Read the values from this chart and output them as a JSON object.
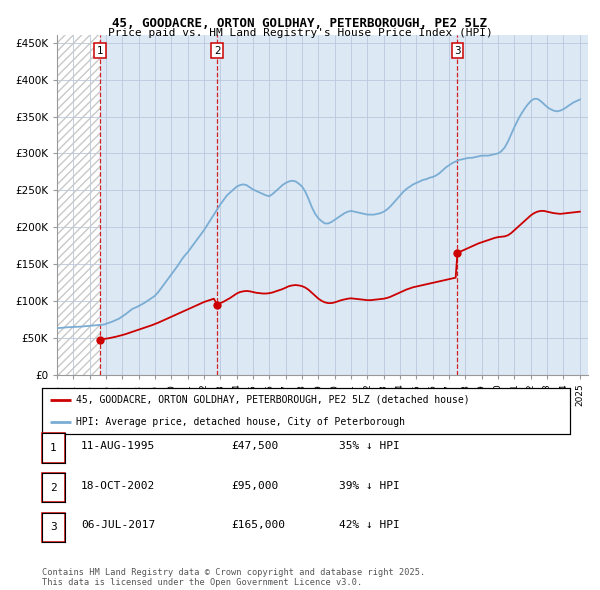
{
  "title1": "45, GOODACRE, ORTON GOLDHAY, PETERBOROUGH, PE2 5LZ",
  "title2": "Price paid vs. HM Land Registry's House Price Index (HPI)",
  "ylabel_ticks": [
    "£0",
    "£50K",
    "£100K",
    "£150K",
    "£200K",
    "£250K",
    "£300K",
    "£350K",
    "£400K",
    "£450K"
  ],
  "ytick_vals": [
    0,
    50000,
    100000,
    150000,
    200000,
    250000,
    300000,
    350000,
    400000,
    450000
  ],
  "ylim": [
    0,
    460000
  ],
  "xlim_start": 1993.0,
  "xlim_end": 2025.5,
  "hpi_color": "#7aadd4",
  "price_color": "#cc0000",
  "marker_color": "#cc0000",
  "sale_dates": [
    1995.61,
    2002.8,
    2017.51
  ],
  "sale_prices": [
    47500,
    95000,
    165000
  ],
  "sale_labels": [
    "1",
    "2",
    "3"
  ],
  "vline_color": "#cc0000",
  "background_hatch_color": "#c8c8c8",
  "chart_bg_color": "#dde8f5",
  "grid_color": "#b8c8dd",
  "legend_entry1": "45, GOODACRE, ORTON GOLDHAY, PETERBOROUGH, PE2 5LZ (detached house)",
  "legend_entry2": "HPI: Average price, detached house, City of Peterborough",
  "table_rows": [
    [
      "1",
      "11-AUG-1995",
      "£47,500",
      "35% ↓ HPI"
    ],
    [
      "2",
      "18-OCT-2002",
      "£95,000",
      "39% ↓ HPI"
    ],
    [
      "3",
      "06-JUL-2017",
      "£165,000",
      "42% ↓ HPI"
    ]
  ],
  "footnote": "Contains HM Land Registry data © Crown copyright and database right 2025.\nThis data is licensed under the Open Government Licence v3.0.",
  "hpi_x": [
    1993.0,
    1993.1,
    1993.2,
    1993.3,
    1993.4,
    1993.5,
    1993.6,
    1993.7,
    1993.8,
    1993.9,
    1994.0,
    1994.1,
    1994.2,
    1994.3,
    1994.4,
    1994.5,
    1994.6,
    1994.7,
    1994.8,
    1994.9,
    1995.0,
    1995.1,
    1995.2,
    1995.3,
    1995.4,
    1995.5,
    1995.6,
    1995.7,
    1995.8,
    1995.9,
    1996.0,
    1996.2,
    1996.4,
    1996.6,
    1996.8,
    1997.0,
    1997.2,
    1997.4,
    1997.6,
    1997.8,
    1998.0,
    1998.2,
    1998.4,
    1998.6,
    1998.8,
    1999.0,
    1999.2,
    1999.4,
    1999.6,
    1999.8,
    2000.0,
    2000.2,
    2000.4,
    2000.6,
    2000.8,
    2001.0,
    2001.2,
    2001.4,
    2001.6,
    2001.8,
    2002.0,
    2002.2,
    2002.4,
    2002.6,
    2002.8,
    2003.0,
    2003.2,
    2003.4,
    2003.6,
    2003.8,
    2004.0,
    2004.2,
    2004.4,
    2004.6,
    2004.8,
    2005.0,
    2005.2,
    2005.4,
    2005.6,
    2005.8,
    2006.0,
    2006.2,
    2006.4,
    2006.6,
    2006.8,
    2007.0,
    2007.2,
    2007.4,
    2007.6,
    2007.8,
    2008.0,
    2008.2,
    2008.4,
    2008.6,
    2008.8,
    2009.0,
    2009.2,
    2009.4,
    2009.6,
    2009.8,
    2010.0,
    2010.2,
    2010.4,
    2010.6,
    2010.8,
    2011.0,
    2011.2,
    2011.4,
    2011.6,
    2011.8,
    2012.0,
    2012.2,
    2012.4,
    2012.6,
    2012.8,
    2013.0,
    2013.2,
    2013.4,
    2013.6,
    2013.8,
    2014.0,
    2014.2,
    2014.4,
    2014.6,
    2014.8,
    2015.0,
    2015.2,
    2015.4,
    2015.6,
    2015.8,
    2016.0,
    2016.2,
    2016.4,
    2016.6,
    2016.8,
    2017.0,
    2017.2,
    2017.4,
    2017.6,
    2017.8,
    2018.0,
    2018.2,
    2018.4,
    2018.6,
    2018.8,
    2019.0,
    2019.2,
    2019.4,
    2019.6,
    2019.8,
    2020.0,
    2020.2,
    2020.4,
    2020.6,
    2020.8,
    2021.0,
    2021.2,
    2021.4,
    2021.6,
    2021.8,
    2022.0,
    2022.2,
    2022.4,
    2022.6,
    2022.8,
    2023.0,
    2023.2,
    2023.4,
    2023.6,
    2023.8,
    2024.0,
    2024.2,
    2024.4,
    2024.6,
    2024.8,
    2025.0
  ],
  "hpi_y": [
    63000,
    63200,
    63400,
    63600,
    63800,
    64000,
    64200,
    64300,
    64400,
    64500,
    64600,
    64700,
    64800,
    64900,
    65000,
    65200,
    65400,
    65600,
    65800,
    66000,
    66200,
    66400,
    66600,
    66800,
    67000,
    67200,
    67400,
    67600,
    67800,
    68000,
    69000,
    70500,
    72000,
    74000,
    76000,
    79000,
    82000,
    85500,
    89000,
    91000,
    93000,
    95500,
    98000,
    101000,
    104000,
    107000,
    112000,
    118000,
    124000,
    130000,
    136000,
    142000,
    148000,
    155000,
    161000,
    166000,
    172000,
    178000,
    184000,
    190000,
    196000,
    203000,
    210000,
    217000,
    224000,
    231000,
    237000,
    243000,
    247000,
    251000,
    255000,
    257000,
    258000,
    257000,
    254000,
    251000,
    249000,
    247000,
    245000,
    243000,
    242000,
    245000,
    249000,
    253000,
    257000,
    260000,
    262000,
    263000,
    262000,
    259000,
    255000,
    248000,
    238000,
    227000,
    218000,
    212000,
    208000,
    205000,
    205000,
    207000,
    210000,
    213000,
    216000,
    219000,
    221000,
    222000,
    221000,
    220000,
    219000,
    218000,
    217000,
    217000,
    217000,
    218000,
    219000,
    221000,
    224000,
    228000,
    233000,
    238000,
    243000,
    248000,
    252000,
    255000,
    258000,
    260000,
    262000,
    264000,
    265000,
    267000,
    268000,
    270000,
    273000,
    277000,
    281000,
    284000,
    287000,
    289000,
    291000,
    292000,
    293000,
    294000,
    294000,
    295000,
    296000,
    297000,
    297000,
    297000,
    298000,
    299000,
    300000,
    303000,
    308000,
    316000,
    326000,
    336000,
    345000,
    353000,
    360000,
    366000,
    371000,
    374000,
    374000,
    371000,
    367000,
    363000,
    360000,
    358000,
    357000,
    358000,
    360000,
    363000,
    366000,
    369000,
    371000,
    373000
  ],
  "price_x": [
    1995.61,
    1995.7,
    1995.8,
    1995.9,
    1996.0,
    1996.2,
    1996.4,
    1996.6,
    1996.8,
    1997.0,
    1997.2,
    1997.4,
    1997.6,
    1997.8,
    1998.0,
    1998.2,
    1998.4,
    1998.6,
    1998.8,
    1999.0,
    1999.2,
    1999.4,
    1999.6,
    1999.8,
    2000.0,
    2000.2,
    2000.4,
    2000.6,
    2000.8,
    2001.0,
    2001.2,
    2001.4,
    2001.6,
    2001.8,
    2002.0,
    2002.2,
    2002.4,
    2002.6,
    2002.8,
    2003.0,
    2003.2,
    2003.4,
    2003.6,
    2003.8,
    2004.0,
    2004.2,
    2004.4,
    2004.6,
    2004.8,
    2005.0,
    2005.2,
    2005.4,
    2005.6,
    2005.8,
    2006.0,
    2006.2,
    2006.4,
    2006.6,
    2006.8,
    2007.0,
    2007.2,
    2007.4,
    2007.6,
    2007.8,
    2008.0,
    2008.2,
    2008.4,
    2008.6,
    2008.8,
    2009.0,
    2009.2,
    2009.4,
    2009.6,
    2009.8,
    2010.0,
    2010.2,
    2010.4,
    2010.6,
    2010.8,
    2011.0,
    2011.2,
    2011.4,
    2011.6,
    2011.8,
    2012.0,
    2012.2,
    2012.4,
    2012.6,
    2012.8,
    2013.0,
    2013.2,
    2013.4,
    2013.6,
    2013.8,
    2014.0,
    2014.2,
    2014.4,
    2014.6,
    2014.8,
    2015.0,
    2015.2,
    2015.4,
    2015.6,
    2015.8,
    2016.0,
    2016.2,
    2016.4,
    2016.6,
    2016.8,
    2017.0,
    2017.2,
    2017.4,
    2017.51,
    2017.6,
    2017.8,
    2018.0,
    2018.2,
    2018.4,
    2018.6,
    2018.8,
    2019.0,
    2019.2,
    2019.4,
    2019.6,
    2019.8,
    2020.0,
    2020.2,
    2020.4,
    2020.6,
    2020.8,
    2021.0,
    2021.2,
    2021.4,
    2021.6,
    2021.8,
    2022.0,
    2022.2,
    2022.4,
    2022.6,
    2022.8,
    2023.0,
    2023.2,
    2023.4,
    2023.6,
    2023.8,
    2024.0,
    2024.2,
    2024.4,
    2024.6,
    2024.8,
    2025.0
  ],
  "price_y": [
    47500,
    47800,
    48100,
    48400,
    48700,
    49500,
    50400,
    51400,
    52500,
    53700,
    55000,
    56500,
    58000,
    59500,
    61000,
    62500,
    64000,
    65500,
    67000,
    68700,
    70500,
    72500,
    74500,
    76500,
    78500,
    80500,
    82500,
    84500,
    86500,
    88500,
    90500,
    92500,
    94500,
    96500,
    98500,
    100000,
    101500,
    103000,
    95000,
    97000,
    99000,
    101500,
    104000,
    107000,
    110000,
    112000,
    113000,
    113500,
    113000,
    112000,
    111000,
    110500,
    110000,
    110000,
    110500,
    111500,
    113000,
    114500,
    116000,
    118000,
    120000,
    121000,
    121500,
    121000,
    120000,
    118000,
    115000,
    111000,
    107000,
    103000,
    100000,
    98000,
    97000,
    97000,
    98000,
    99500,
    101000,
    102000,
    103000,
    103500,
    103000,
    102500,
    102000,
    101500,
    101000,
    101000,
    101500,
    102000,
    102500,
    103000,
    104000,
    105500,
    107500,
    109500,
    111500,
    113500,
    115500,
    117000,
    118500,
    119500,
    120500,
    121500,
    122500,
    123500,
    124500,
    125500,
    126500,
    127500,
    128500,
    129500,
    130500,
    131500,
    165000,
    166000,
    168000,
    170000,
    172000,
    174000,
    176000,
    178000,
    179500,
    181000,
    182500,
    184000,
    185500,
    186500,
    187000,
    187500,
    189000,
    192000,
    196000,
    200000,
    204000,
    208000,
    212000,
    216000,
    219000,
    221000,
    222000,
    222000,
    221000,
    220000,
    219000,
    218500,
    218000,
    218500,
    219000,
    219500,
    220000,
    220500,
    221000
  ]
}
